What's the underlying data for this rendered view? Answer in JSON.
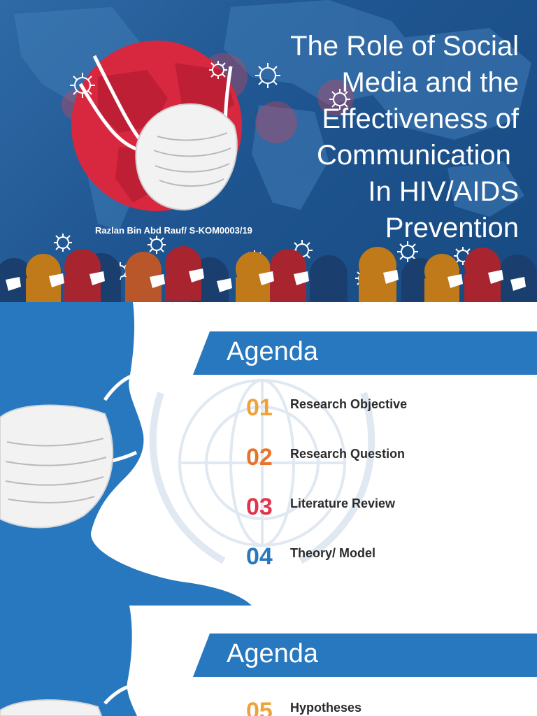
{
  "slide1": {
    "title_lines": [
      "The Role of Social",
      "Media and the",
      "Effectiveness of",
      "Communication ",
      "In HIV/AIDS",
      "Prevention"
    ],
    "author": "Razlan Bin Abd Rauf/ S-KOM0003/19"
  },
  "slide2": {
    "heading": "Agenda",
    "items": [
      {
        "number": "01",
        "label": "Research Objective",
        "color": "#f0a23a"
      },
      {
        "number": "02",
        "label": "Research Question",
        "color": "#e8732c"
      },
      {
        "number": "03",
        "label": "Literature Review",
        "color": "#e0354a"
      },
      {
        "number": "04",
        "label": "Theory/ Model",
        "color": "#2878bf"
      }
    ]
  },
  "slide3": {
    "heading": "Agenda",
    "items": [
      {
        "number": "05",
        "label": "Hypotheses",
        "color": "#f0a23a"
      }
    ]
  },
  "colors": {
    "brand_blue": "#2878bf",
    "dark_blue": "#1f5590",
    "globe_red": "#d8283f"
  }
}
